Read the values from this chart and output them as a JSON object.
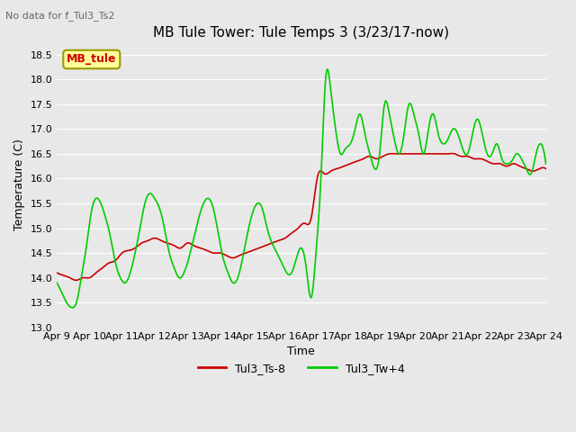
{
  "title": "MB Tule Tower: Tule Temps 3 (3/23/17-now)",
  "subtitle": "No data for f_Tul3_Ts2",
  "xlabel": "Time",
  "ylabel": "Temperature (C)",
  "ylim": [
    13.0,
    18.75
  ],
  "yticks": [
    13.0,
    13.5,
    14.0,
    14.5,
    15.0,
    15.5,
    16.0,
    16.5,
    17.0,
    17.5,
    18.0,
    18.5
  ],
  "xtick_labels": [
    "Apr 9",
    "Apr 10",
    "Apr 11",
    "Apr 12",
    "Apr 13",
    "Apr 14",
    "Apr 15",
    "Apr 16",
    "Apr 17",
    "Apr 18",
    "Apr 19",
    "Apr 20",
    "Apr 21",
    "Apr 22",
    "Apr 23",
    "Apr 24"
  ],
  "legend_label_box": "MB_tule",
  "legend_box_color": "#ffff99",
  "legend_box_text_color": "#cc0000",
  "legend_box_edge_color": "#999900",
  "line1_label": "Tul3_Ts-8",
  "line1_color": "#cc0000",
  "line2_label": "Tul3_Tw+4",
  "line2_color": "#00cc00",
  "bg_color": "#e8e8e8",
  "plot_bg_color": "#e8e8e8",
  "grid_color": "#ffffff",
  "title_fontsize": 11,
  "axis_fontsize": 9,
  "tick_fontsize": 8,
  "subtitle_fontsize": 8,
  "legend_fontsize": 9,
  "linewidth": 1.2,
  "red_x": [
    0,
    0.2,
    0.4,
    0.6,
    0.8,
    1.0,
    1.2,
    1.4,
    1.6,
    1.8,
    2.0,
    2.2,
    2.4,
    2.6,
    2.8,
    3.0,
    3.2,
    3.4,
    3.6,
    3.8,
    4.0,
    4.2,
    4.4,
    4.6,
    4.8,
    5.0,
    5.2,
    5.4,
    5.6,
    5.8,
    6.0,
    6.2,
    6.4,
    6.6,
    6.8,
    7.0,
    7.2,
    7.4,
    7.6,
    7.8,
    8.0,
    8.2,
    8.4,
    8.6,
    8.8,
    9.0,
    9.2,
    9.4,
    9.6,
    9.8,
    10.0,
    10.2,
    10.4,
    10.6,
    10.8,
    11.0,
    11.2,
    11.4,
    11.6,
    11.8,
    12.0,
    12.2,
    12.4,
    12.6,
    12.8,
    13.0,
    13.2,
    13.4,
    13.6,
    13.8,
    14.0,
    14.2,
    14.4,
    14.6,
    14.8,
    15.0
  ],
  "red_y": [
    14.1,
    14.05,
    14.0,
    13.95,
    14.0,
    14.0,
    14.1,
    14.2,
    14.3,
    14.35,
    14.5,
    14.55,
    14.6,
    14.7,
    14.75,
    14.8,
    14.75,
    14.7,
    14.65,
    14.6,
    14.7,
    14.65,
    14.6,
    14.55,
    14.5,
    14.5,
    14.45,
    14.4,
    14.45,
    14.5,
    14.55,
    14.6,
    14.65,
    14.7,
    14.75,
    14.8,
    14.9,
    15.0,
    15.1,
    15.2,
    16.05,
    16.1,
    16.15,
    16.2,
    16.25,
    16.3,
    16.35,
    16.4,
    16.45,
    16.4,
    16.45,
    16.5,
    16.5,
    16.5,
    16.5,
    16.5,
    16.5,
    16.5,
    16.5,
    16.5,
    16.5,
    16.5,
    16.45,
    16.45,
    16.4,
    16.4,
    16.35,
    16.3,
    16.3,
    16.25,
    16.3,
    16.25,
    16.2,
    16.15,
    16.2,
    16.2
  ],
  "green_x": [
    0,
    0.15,
    0.3,
    0.45,
    0.6,
    0.75,
    0.9,
    1.05,
    1.2,
    1.35,
    1.5,
    1.65,
    1.8,
    1.95,
    2.1,
    2.25,
    2.4,
    2.55,
    2.7,
    2.85,
    3.0,
    3.15,
    3.3,
    3.45,
    3.6,
    3.75,
    3.9,
    4.05,
    4.2,
    4.35,
    4.5,
    4.65,
    4.8,
    4.95,
    5.1,
    5.25,
    5.4,
    5.55,
    5.7,
    5.85,
    6.0,
    6.15,
    6.3,
    6.45,
    6.6,
    6.75,
    6.9,
    7.05,
    7.2,
    7.35,
    7.5,
    7.65,
    7.8,
    7.95,
    8.1,
    8.25,
    8.4,
    8.55,
    8.7,
    8.85,
    9.0,
    9.15,
    9.3,
    9.45,
    9.6,
    9.75,
    9.9,
    10.05,
    10.2,
    10.35,
    10.5,
    10.65,
    10.8,
    10.95,
    11.1,
    11.25,
    11.4,
    11.55,
    11.7,
    11.85,
    12.0,
    12.15,
    12.3,
    12.45,
    12.6,
    12.75,
    12.9,
    13.05,
    13.2,
    13.35,
    13.5,
    13.65,
    13.8,
    13.95,
    14.1,
    14.25,
    14.4,
    14.55,
    14.7,
    14.85,
    15.0
  ],
  "green_y": [
    13.9,
    13.7,
    13.5,
    13.4,
    13.5,
    14.0,
    14.6,
    15.3,
    15.6,
    15.5,
    15.2,
    14.8,
    14.3,
    14.0,
    13.9,
    14.1,
    14.5,
    15.0,
    15.5,
    15.7,
    15.6,
    15.4,
    15.0,
    14.5,
    14.2,
    14.0,
    14.1,
    14.4,
    14.8,
    15.2,
    15.5,
    15.6,
    15.4,
    14.9,
    14.4,
    14.1,
    13.9,
    14.0,
    14.4,
    14.9,
    15.3,
    15.5,
    15.4,
    15.0,
    14.7,
    14.5,
    14.3,
    14.1,
    14.1,
    14.4,
    14.6,
    14.2,
    13.6,
    14.5,
    16.0,
    18.05,
    17.8,
    17.0,
    16.5,
    16.6,
    16.7,
    17.0,
    17.3,
    16.9,
    16.5,
    16.2,
    16.5,
    17.5,
    17.3,
    16.8,
    16.5,
    16.9,
    17.5,
    17.3,
    16.9,
    16.5,
    17.0,
    17.3,
    16.9,
    16.7,
    16.8,
    17.0,
    16.9,
    16.6,
    16.5,
    16.9,
    17.2,
    16.9,
    16.5,
    16.5,
    16.7,
    16.4,
    16.3,
    16.35,
    16.5,
    16.4,
    16.2,
    16.1,
    16.5,
    16.7,
    16.3
  ]
}
